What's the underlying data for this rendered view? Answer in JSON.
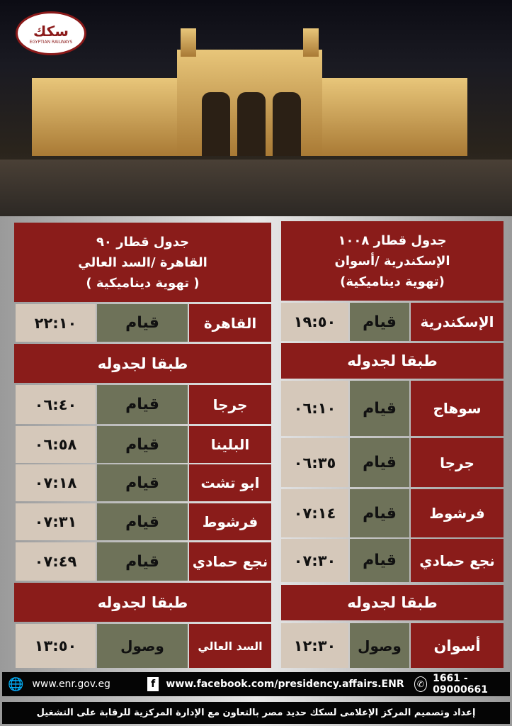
{
  "logo": {
    "arabic": "سكك حديد مصر",
    "english": "EGYPTIAN RAILWAYS"
  },
  "colors": {
    "red": "#8a1c1a",
    "olive": "#6e7259",
    "beige": "#d5c8ba"
  },
  "left_panel": {
    "title": "جدول قطار ٩٠",
    "route": "القاهرة /السد العالي",
    "type": "( تهوية ديناميكية )",
    "origin": {
      "station": "القاهرة",
      "status": "قيام",
      "time": "٢٢:١٠"
    },
    "as_scheduled_1": "طبقا لجدوله",
    "stops": [
      {
        "station": "جرجا",
        "status": "قيام",
        "time": "٠٦:٤٠"
      },
      {
        "station": "البلينا",
        "status": "قيام",
        "time": "٠٦:٥٨"
      },
      {
        "station": "ابو تشت",
        "status": "قيام",
        "time": "٠٧:١٨"
      },
      {
        "station": "فرشوط",
        "status": "قيام",
        "time": "٠٧:٣١"
      },
      {
        "station": "نجع حمادي",
        "status": "قيام",
        "time": "٠٧:٤٩"
      }
    ],
    "as_scheduled_2": "طبقا لجدوله",
    "destination": {
      "station": "السد العالي",
      "status": "وصول",
      "time": "١٣:٥٠"
    }
  },
  "right_panel": {
    "title": "جدول قطار ١٠٠٨",
    "route": "الإسكندرية /أسوان",
    "type": "(تهوية ديناميكية)",
    "origin": {
      "station": "الإسكندرية",
      "status": "قيام",
      "time": "١٩:٥٠"
    },
    "as_scheduled_1": "طبقا لجدوله",
    "stops": [
      {
        "station": "سوهاج",
        "status": "قيام",
        "time": "٠٦:١٠"
      },
      {
        "station": "جرجا",
        "status": "قيام",
        "time": "٠٦:٣٥"
      },
      {
        "station": "فرشوط",
        "status": "قيام",
        "time": "٠٧:١٤"
      },
      {
        "station": "نجع حمادي",
        "status": "قيام",
        "time": "٠٧:٣٠"
      }
    ],
    "as_scheduled_2": "طبقا لجدوله",
    "destination": {
      "station": "أسوان",
      "status": "وصول",
      "time": "١٢:٣٠"
    }
  },
  "footer": {
    "website": "www.enr.gov.eg",
    "facebook": "www.facebook.com/presidency.affairs.ENR",
    "phone": "1661 - 09000661",
    "credit": "إعداد وتصميم المركز الإعلامى لسكك حديد مصر بالتعاون مع الإدارة المركزية للرقابة على التشغيل"
  }
}
